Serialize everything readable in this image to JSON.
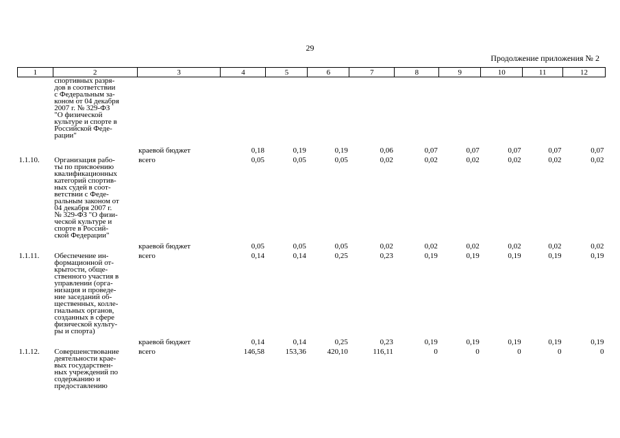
{
  "page_number": "29",
  "appendix_note": "Продолжение приложения № 2",
  "header": [
    "1",
    "2",
    "3",
    "4",
    "5",
    "6",
    "7",
    "8",
    "9",
    "10",
    "11",
    "12"
  ],
  "continuation_name": "спортивных разря-\nдов в соответствии\nс Федеральным за-\nконом от 04 декабря\n2007 г. № 329-ФЗ\n\"О физической\nкультуре и спорте в\nРоссийской Феде-\nрации\"",
  "rows": [
    {
      "budget": "краевой бюджет",
      "values": [
        "0,18",
        "0,19",
        "0,19",
        "0,06",
        "0,07",
        "0,07",
        "0,07",
        "0,07",
        "0,07"
      ]
    },
    {
      "num": "1.1.10.",
      "name": "Организация рабо-\nты по присвоению\nквалификационных\nкатегорий спортив-\nных судей в соот-\nветствии с Феде-\nральным законом от\n04 декабря 2007 г.\n№ 329-ФЗ \"О физи-\nческой культуре и\nспорте в Россий-\nской Федерации\"",
      "budget": "всего",
      "values": [
        "0,05",
        "0,05",
        "0,05",
        "0,02",
        "0,02",
        "0,02",
        "0,02",
        "0,02",
        "0,02"
      ]
    },
    {
      "budget": "краевой бюджет",
      "values": [
        "0,05",
        "0,05",
        "0,05",
        "0,02",
        "0,02",
        "0,02",
        "0,02",
        "0,02",
        "0,02"
      ]
    },
    {
      "num": "1.1.11.",
      "name": "Обеспечение ин-\nформационной от-\nкрытости, обще-\nственного участия в\nуправлении (орга-\nнизация и проведе-\nние заседаний об-\nщественных, колле-\nгиальных органов,\nсозданных в сфере\nфизической культу-\nры и спорта)",
      "budget": "всего",
      "values": [
        "0,14",
        "0,14",
        "0,25",
        "0,23",
        "0,19",
        "0,19",
        "0,19",
        "0,19",
        "0,19"
      ]
    },
    {
      "budget": "краевой бюджет",
      "values": [
        "0,14",
        "0,14",
        "0,25",
        "0,23",
        "0,19",
        "0,19",
        "0,19",
        "0,19",
        "0,19"
      ]
    },
    {
      "num": "1.1.12.",
      "name": "Совершенствование\nдеятельности крае-\nвых государствен-\nных учреждений по\nсодержанию и\nпредоставлению",
      "budget": "всего",
      "values": [
        "146,58",
        "153,36",
        "420,10",
        "116,11",
        "0",
        "0",
        "0",
        "0",
        "0"
      ]
    }
  ]
}
